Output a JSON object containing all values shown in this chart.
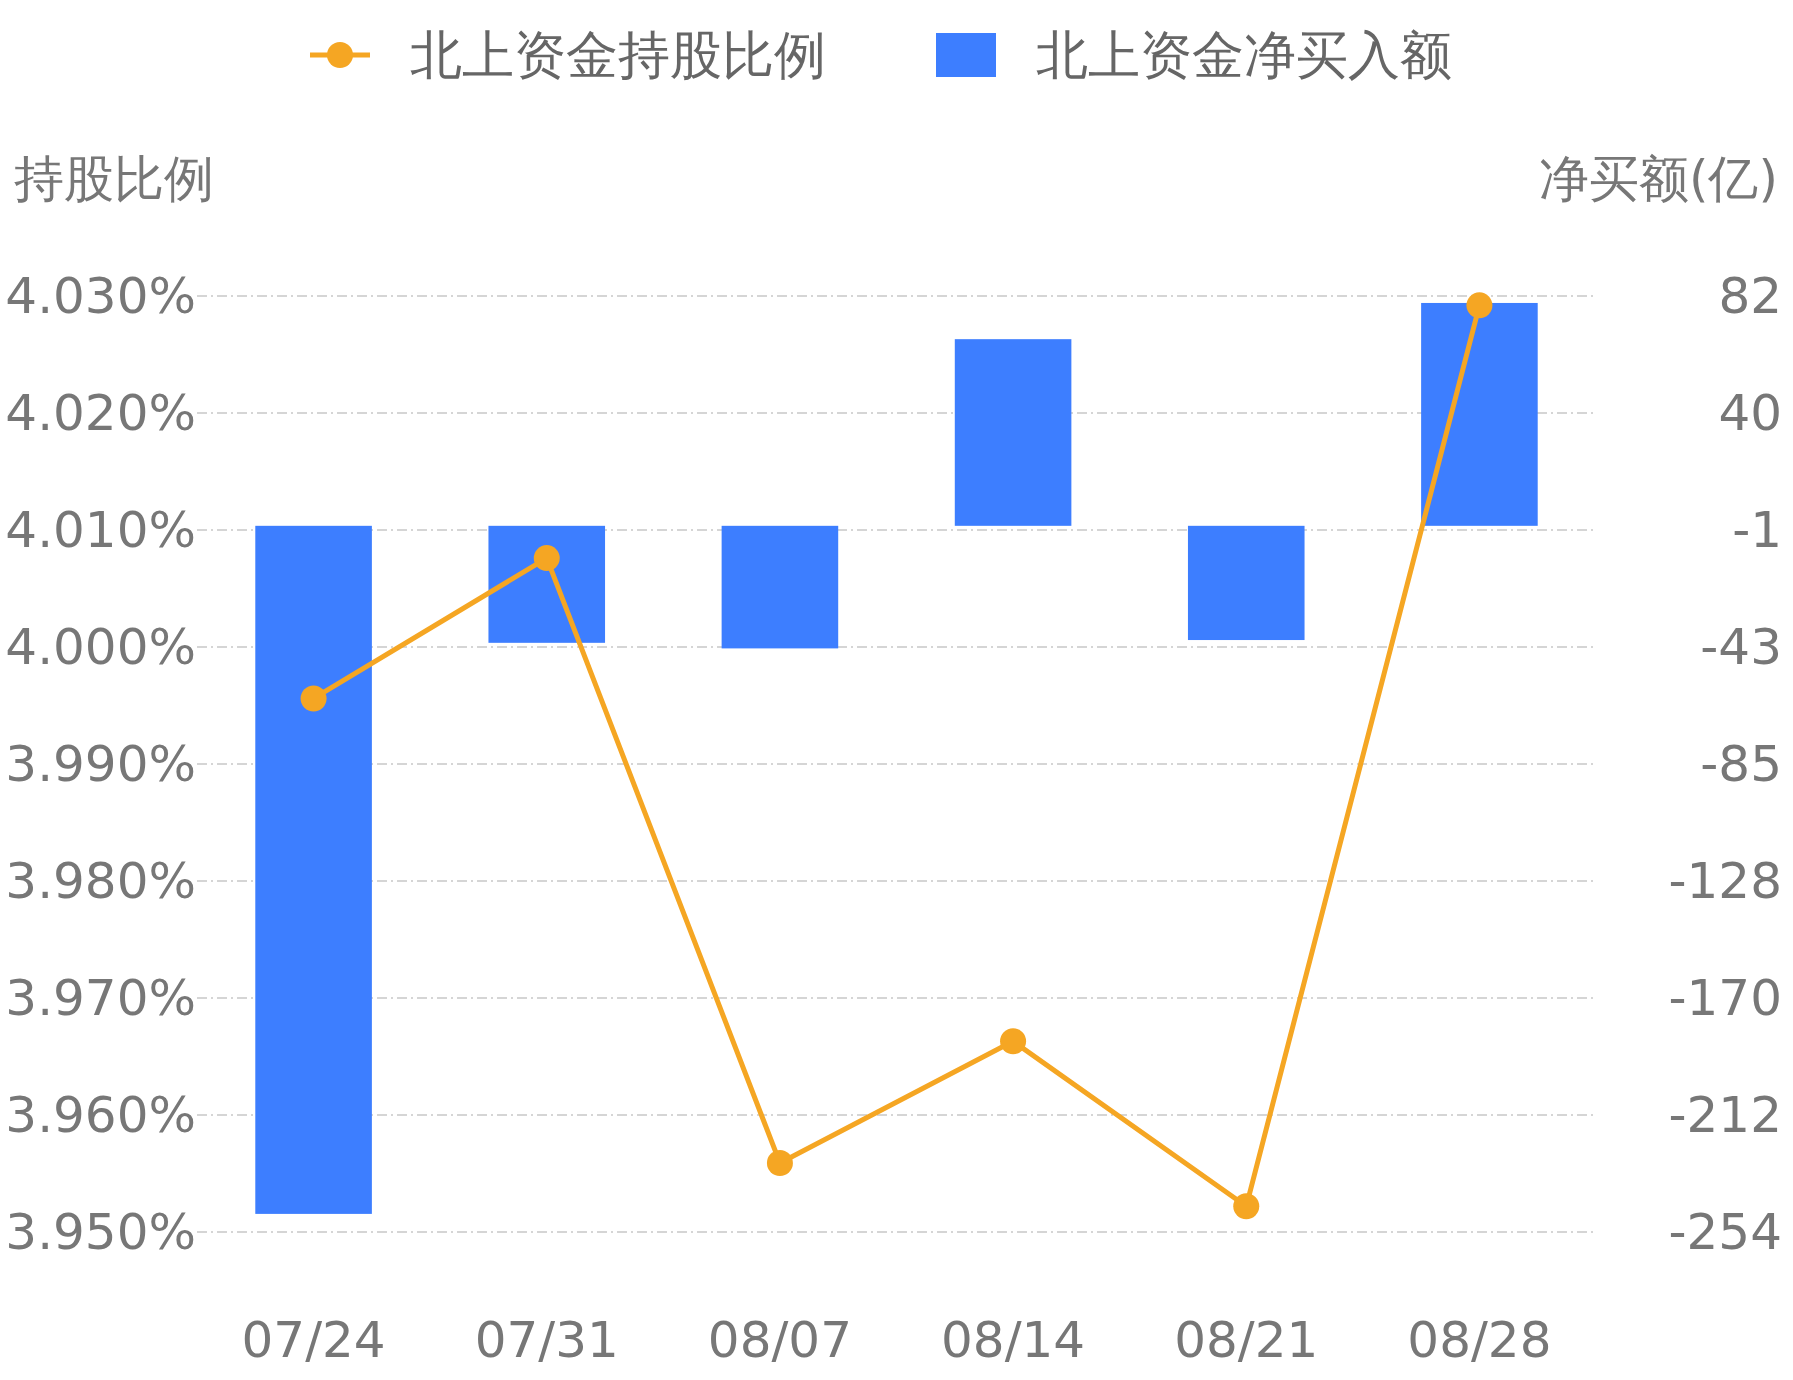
{
  "chart_data": {
    "type": "bar",
    "categories": [
      "07/24",
      "07/31",
      "08/07",
      "08/14",
      "08/21",
      "08/28"
    ],
    "ylabel": "持股比例",
    "y2label": "净买额(亿)",
    "ylim": [
      3.95,
      4.03
    ],
    "yticks": [
      {
        "value": 3.95,
        "label": "3.950%"
      },
      {
        "value": 3.96,
        "label": "3.960%"
      },
      {
        "value": 3.97,
        "label": "3.970%"
      },
      {
        "value": 3.98,
        "label": "3.980%"
      },
      {
        "value": 3.99,
        "label": "3.990%"
      },
      {
        "value": 4.0,
        "label": "4.000%"
      },
      {
        "value": 4.01,
        "label": "4.010%"
      },
      {
        "value": 4.02,
        "label": "4.020%"
      },
      {
        "value": 4.03,
        "label": "4.030%"
      }
    ],
    "y2lim": [
      -253.5,
      82.5
    ],
    "y2ticks": [
      {
        "value": -253.5,
        "label": "-254"
      },
      {
        "value": -211.5,
        "label": "-212"
      },
      {
        "value": -169.5,
        "label": "-170"
      },
      {
        "value": -127.5,
        "label": "-128"
      },
      {
        "value": -85.5,
        "label": "-85"
      },
      {
        "value": -43.5,
        "label": "-43"
      },
      {
        "value": -1.5,
        "label": "-1"
      },
      {
        "value": 40.5,
        "label": "40"
      },
      {
        "value": 82.5,
        "label": "82"
      }
    ],
    "grid": "y",
    "legend": "top",
    "series": [
      {
        "name": "北上资金持股比例",
        "type": "line",
        "color": "#f5a623",
        "marker": "circle",
        "values": [
          3.9956,
          4.0076,
          3.9559,
          3.9663,
          3.9522,
          4.0292
        ]
      },
      {
        "name": "北上资金净买入额",
        "axis": "y2",
        "color": "#3d7eff",
        "values": [
          -247,
          -42,
          -44,
          67,
          -41,
          80
        ]
      }
    ]
  }
}
